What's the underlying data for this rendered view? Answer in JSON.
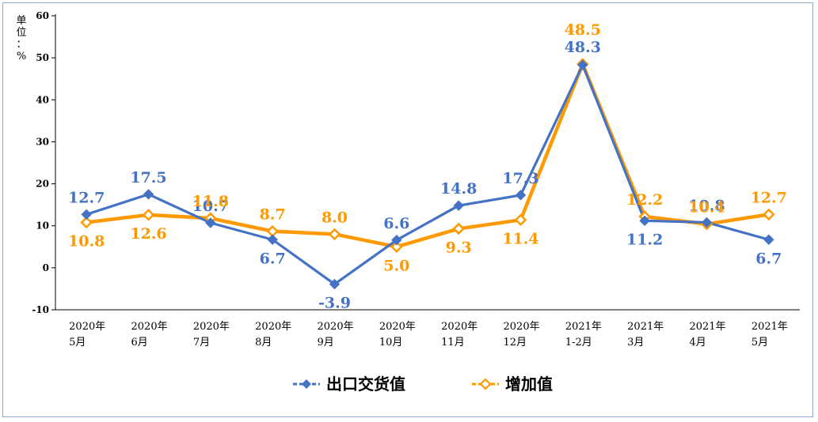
{
  "chart_data": {
    "type": "line",
    "unit_label": "单位：%",
    "categories": [
      [
        "2020年",
        "5月"
      ],
      [
        "2020年",
        "6月"
      ],
      [
        "2020年",
        "7月"
      ],
      [
        "2020年",
        "8月"
      ],
      [
        "2020年",
        "9月"
      ],
      [
        "2020年",
        "10月"
      ],
      [
        "2020年",
        "11月"
      ],
      [
        "2020年",
        "12月"
      ],
      [
        "2021年",
        "1-2月"
      ],
      [
        "2021年",
        "3月"
      ],
      [
        "2021年",
        "4月"
      ],
      [
        "2021年",
        "5月"
      ]
    ],
    "ylim": [
      -10,
      60
    ],
    "yticks": [
      -10,
      0,
      10,
      20,
      30,
      40,
      50,
      60
    ],
    "grid": false,
    "legend_position": "bottom",
    "series": [
      {
        "name": "出口交货值",
        "color": "#4472c4",
        "marker": "diamond-filled",
        "values": [
          12.7,
          17.5,
          10.7,
          6.7,
          -3.9,
          6.6,
          14.8,
          17.3,
          48.3,
          11.2,
          10.8,
          6.7
        ],
        "labels": [
          "12.7",
          "17.5",
          "10.7",
          "6.7",
          "-3.9",
          "6.6",
          "14.8",
          "17.3",
          "48.3",
          "11.2",
          "10.8",
          "6.7"
        ]
      },
      {
        "name": "增加值",
        "color": "#ff9900",
        "marker": "diamond-open",
        "values": [
          10.8,
          12.6,
          11.8,
          8.7,
          8.0,
          5.0,
          9.3,
          11.4,
          48.5,
          12.2,
          10.4,
          12.7
        ],
        "labels": [
          "10.8",
          "12.6",
          "11.8",
          "8.7",
          "8.0",
          "5.0",
          "9.3",
          "11.4",
          "48.5",
          "12.2",
          "10.4",
          "12.7"
        ]
      }
    ]
  }
}
